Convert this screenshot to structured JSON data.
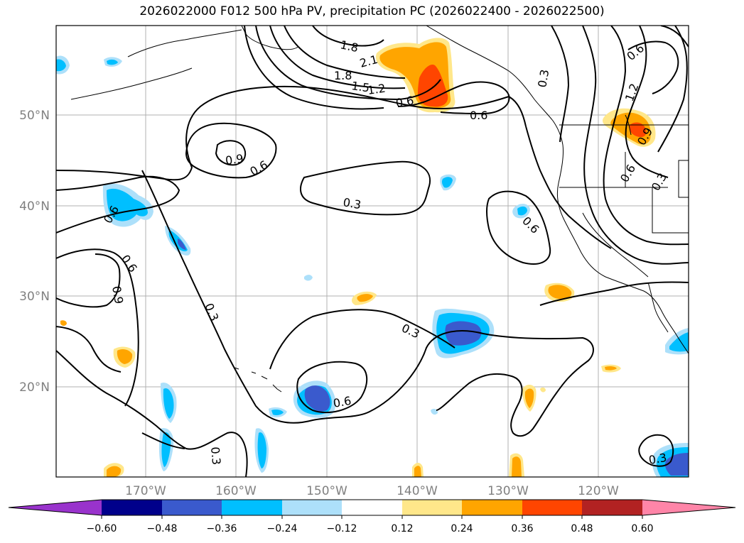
{
  "title": "2026022000 F012 500 hPa PV, precipitation PC (2026022400 - 2026022500)",
  "axes": {
    "lat_labels": [
      "50°N",
      "40°N",
      "30°N",
      "20°N"
    ],
    "lon_labels": [
      "170°W",
      "160°W",
      "150°W",
      "140°W",
      "130°W",
      "120°W"
    ]
  },
  "contour_labels": [
    "1.8",
    "1.8",
    "2.1",
    "1.5",
    "1.2",
    "0.6",
    "0.6",
    "0.9",
    "0.6",
    "0.3",
    "0.6",
    "0.6",
    "0.9",
    "0.6",
    "0.3",
    "0.3",
    "0.6",
    "0.3",
    "0.3",
    "0.6",
    "1.2",
    "0.9",
    "0.6",
    "0.3",
    "0.3"
  ],
  "colorbar": {
    "colors": [
      "#9933cc",
      "#00008b",
      "#3a5acd",
      "#00bfff",
      "#ade0fa",
      "#ffffff",
      "#ffe78a",
      "#ffa500",
      "#ff4500",
      "#b22222",
      "#ff85a8"
    ],
    "ticks": [
      "−0.60",
      "−0.48",
      "−0.36",
      "−0.24",
      "−0.12",
      "0.12",
      "0.24",
      "0.36",
      "0.48",
      "0.60"
    ]
  }
}
